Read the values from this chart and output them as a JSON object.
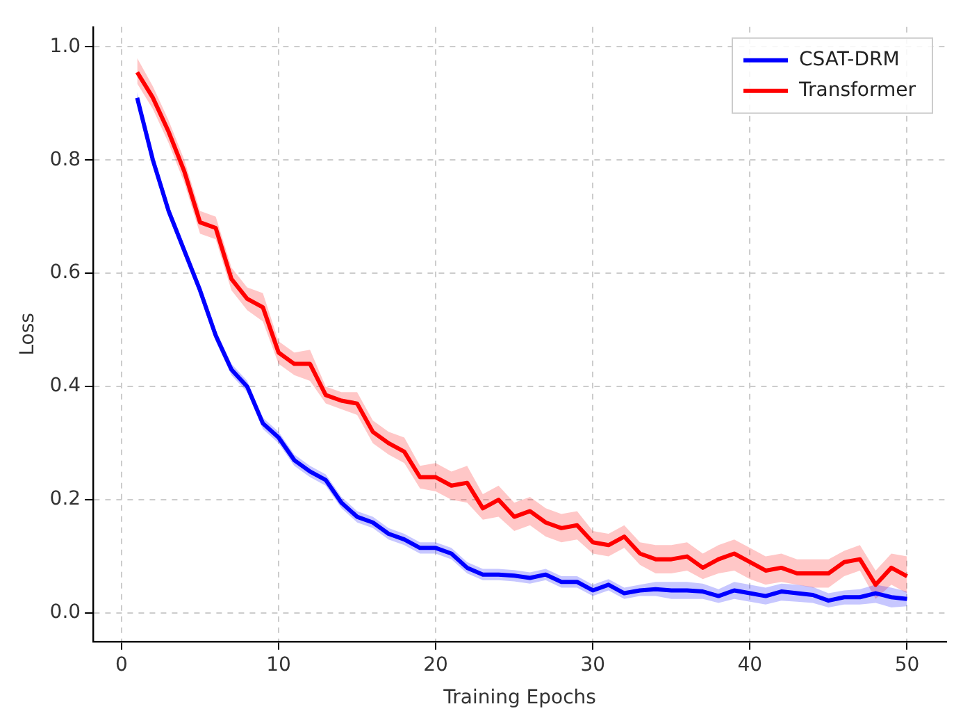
{
  "chart_data": {
    "type": "line",
    "xlabel": "Training Epochs",
    "ylabel": "Loss",
    "x": [
      1,
      2,
      3,
      4,
      5,
      6,
      7,
      8,
      9,
      10,
      11,
      12,
      13,
      14,
      15,
      16,
      17,
      18,
      19,
      20,
      21,
      22,
      23,
      24,
      25,
      26,
      27,
      28,
      29,
      30,
      31,
      32,
      33,
      34,
      35,
      36,
      37,
      38,
      39,
      40,
      41,
      42,
      43,
      44,
      45,
      46,
      47,
      48,
      49,
      50
    ],
    "series": [
      {
        "name": "CSAT-DRM",
        "color": "#0000ff",
        "values": [
          0.91,
          0.8,
          0.71,
          0.64,
          0.57,
          0.49,
          0.43,
          0.4,
          0.335,
          0.31,
          0.27,
          0.25,
          0.235,
          0.195,
          0.17,
          0.16,
          0.14,
          0.13,
          0.115,
          0.115,
          0.105,
          0.08,
          0.068,
          0.068,
          0.066,
          0.062,
          0.068,
          0.055,
          0.055,
          0.04,
          0.05,
          0.035,
          0.04,
          0.042,
          0.04,
          0.04,
          0.038,
          0.03,
          0.04,
          0.035,
          0.03,
          0.038,
          0.035,
          0.032,
          0.022,
          0.028,
          0.028,
          0.035,
          0.028,
          0.025
        ],
        "lower": [
          0.9,
          0.79,
          0.7,
          0.63,
          0.56,
          0.48,
          0.42,
          0.39,
          0.325,
          0.3,
          0.26,
          0.24,
          0.225,
          0.185,
          0.16,
          0.15,
          0.13,
          0.12,
          0.105,
          0.105,
          0.095,
          0.07,
          0.058,
          0.058,
          0.056,
          0.052,
          0.058,
          0.045,
          0.045,
          0.03,
          0.04,
          0.025,
          0.03,
          0.03,
          0.025,
          0.025,
          0.025,
          0.018,
          0.025,
          0.02,
          0.015,
          0.022,
          0.02,
          0.018,
          0.01,
          0.015,
          0.015,
          0.018,
          0.01,
          0.012
        ],
        "upper": [
          0.92,
          0.81,
          0.72,
          0.65,
          0.58,
          0.5,
          0.44,
          0.41,
          0.345,
          0.32,
          0.28,
          0.26,
          0.245,
          0.205,
          0.18,
          0.17,
          0.15,
          0.14,
          0.125,
          0.125,
          0.115,
          0.09,
          0.078,
          0.078,
          0.076,
          0.072,
          0.078,
          0.065,
          0.065,
          0.05,
          0.06,
          0.045,
          0.05,
          0.055,
          0.055,
          0.055,
          0.052,
          0.042,
          0.055,
          0.05,
          0.045,
          0.052,
          0.05,
          0.046,
          0.035,
          0.04,
          0.042,
          0.05,
          0.045,
          0.038
        ]
      },
      {
        "name": "Transformer",
        "color": "#ff0000",
        "values": [
          0.955,
          0.91,
          0.85,
          0.78,
          0.69,
          0.68,
          0.59,
          0.555,
          0.54,
          0.46,
          0.44,
          0.44,
          0.385,
          0.375,
          0.37,
          0.32,
          0.3,
          0.285,
          0.24,
          0.24,
          0.225,
          0.23,
          0.185,
          0.2,
          0.17,
          0.18,
          0.16,
          0.15,
          0.155,
          0.125,
          0.12,
          0.135,
          0.105,
          0.095,
          0.095,
          0.1,
          0.08,
          0.095,
          0.105,
          0.09,
          0.075,
          0.08,
          0.07,
          0.07,
          0.07,
          0.09,
          0.095,
          0.05,
          0.08,
          0.065
        ],
        "lower": [
          0.935,
          0.89,
          0.83,
          0.76,
          0.67,
          0.66,
          0.57,
          0.535,
          0.515,
          0.44,
          0.42,
          0.41,
          0.37,
          0.36,
          0.35,
          0.3,
          0.28,
          0.265,
          0.22,
          0.215,
          0.2,
          0.195,
          0.165,
          0.17,
          0.145,
          0.155,
          0.135,
          0.125,
          0.13,
          0.105,
          0.1,
          0.115,
          0.085,
          0.07,
          0.07,
          0.075,
          0.06,
          0.07,
          0.075,
          0.06,
          0.05,
          0.055,
          0.05,
          0.045,
          0.045,
          0.065,
          0.075,
          0.025,
          0.05,
          0.035
        ],
        "upper": [
          0.98,
          0.93,
          0.87,
          0.8,
          0.71,
          0.7,
          0.61,
          0.575,
          0.565,
          0.48,
          0.46,
          0.465,
          0.4,
          0.39,
          0.39,
          0.34,
          0.32,
          0.31,
          0.26,
          0.265,
          0.25,
          0.26,
          0.21,
          0.225,
          0.195,
          0.205,
          0.185,
          0.175,
          0.18,
          0.145,
          0.14,
          0.155,
          0.125,
          0.12,
          0.12,
          0.125,
          0.105,
          0.12,
          0.13,
          0.115,
          0.1,
          0.105,
          0.095,
          0.095,
          0.095,
          0.11,
          0.12,
          0.075,
          0.105,
          0.1
        ]
      }
    ],
    "xlim": [
      -1.8,
      52.5
    ],
    "xticks": [
      0,
      10,
      20,
      30,
      40,
      50
    ],
    "ylim": [
      -0.05,
      1.035
    ],
    "yticks": [
      {
        "value": 0,
        "label": "0.0"
      },
      {
        "value": 0.2,
        "label": "0.2"
      },
      {
        "value": 0.4,
        "label": "0.4"
      },
      {
        "value": 0.6,
        "label": "0.6"
      },
      {
        "value": 0.8,
        "label": "0.8"
      },
      {
        "value": 1,
        "label": "1.0"
      }
    ],
    "grid": true,
    "legend": "top right",
    "line_style": "solid",
    "marker": "none"
  }
}
